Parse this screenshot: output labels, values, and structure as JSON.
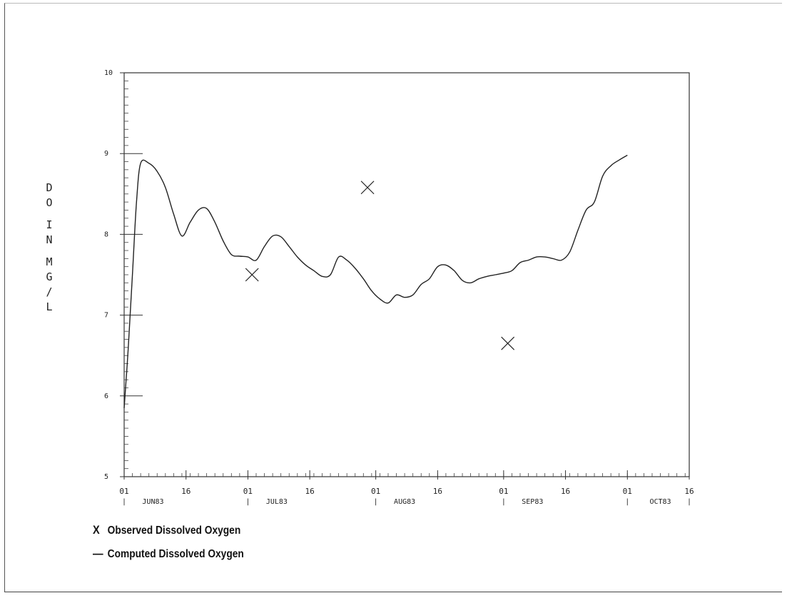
{
  "chart_data": {
    "type": "line",
    "ylabel": "DO IN MG/L",
    "ylim": [
      5,
      10
    ],
    "yticks": [
      "5",
      "6",
      "7",
      "8",
      "9",
      "10"
    ],
    "xlim": [
      "1983-06-01",
      "1983-10-16"
    ],
    "xticks": [
      {
        "date": "1983-06-01",
        "day": "01"
      },
      {
        "date": "1983-06-16",
        "day": "16"
      },
      {
        "date": "1983-07-01",
        "day": "01"
      },
      {
        "date": "1983-07-16",
        "day": "16"
      },
      {
        "date": "1983-08-01",
        "day": "01"
      },
      {
        "date": "1983-08-16",
        "day": "16"
      },
      {
        "date": "1983-09-01",
        "day": "01"
      },
      {
        "date": "1983-09-16",
        "day": "16"
      },
      {
        "date": "1983-10-01",
        "day": "01"
      },
      {
        "date": "1983-10-16",
        "day": "16"
      }
    ],
    "month_labels": [
      {
        "date": "1983-06-08",
        "label": "JUN83"
      },
      {
        "date": "1983-07-08",
        "label": "JUL83"
      },
      {
        "date": "1983-08-08",
        "label": "AUG83"
      },
      {
        "date": "1983-09-08",
        "label": "SEP83"
      },
      {
        "date": "1983-10-09",
        "label": "OCT83"
      }
    ],
    "series": [
      {
        "name": "Computed Dissolved Oxygen",
        "style": "line",
        "x": [
          "1983-06-01",
          "1983-06-02",
          "1983-06-03",
          "1983-06-04",
          "1983-06-05",
          "1983-06-07",
          "1983-06-09",
          "1983-06-11",
          "1983-06-13",
          "1983-06-15",
          "1983-06-17",
          "1983-06-19",
          "1983-06-21",
          "1983-06-23",
          "1983-06-25",
          "1983-06-27",
          "1983-06-29",
          "1983-07-01",
          "1983-07-03",
          "1983-07-05",
          "1983-07-07",
          "1983-07-09",
          "1983-07-11",
          "1983-07-13",
          "1983-07-15",
          "1983-07-17",
          "1983-07-19",
          "1983-07-21",
          "1983-07-23",
          "1983-07-25",
          "1983-07-27",
          "1983-07-29",
          "1983-07-31",
          "1983-08-02",
          "1983-08-04",
          "1983-08-06",
          "1983-08-08",
          "1983-08-10",
          "1983-08-12",
          "1983-08-14",
          "1983-08-16",
          "1983-08-18",
          "1983-08-20",
          "1983-08-22",
          "1983-08-24",
          "1983-08-26",
          "1983-08-28",
          "1983-08-30",
          "1983-09-01",
          "1983-09-03",
          "1983-09-05",
          "1983-09-07",
          "1983-09-09",
          "1983-09-11",
          "1983-09-13",
          "1983-09-15",
          "1983-09-17",
          "1983-09-19",
          "1983-09-21",
          "1983-09-23",
          "1983-09-25",
          "1983-09-27",
          "1983-09-29",
          "1983-10-01"
        ],
        "y": [
          5.85,
          6.6,
          7.5,
          8.4,
          8.88,
          8.88,
          8.78,
          8.58,
          8.25,
          7.98,
          8.15,
          8.3,
          8.32,
          8.15,
          7.92,
          7.75,
          7.73,
          7.72,
          7.68,
          7.85,
          7.98,
          7.97,
          7.85,
          7.72,
          7.62,
          7.55,
          7.48,
          7.5,
          7.72,
          7.68,
          7.58,
          7.45,
          7.3,
          7.2,
          7.15,
          7.25,
          7.22,
          7.25,
          7.38,
          7.45,
          7.6,
          7.62,
          7.55,
          7.43,
          7.4,
          7.45,
          7.48,
          7.5,
          7.52,
          7.55,
          7.65,
          7.68,
          7.72,
          7.72,
          7.7,
          7.68,
          7.78,
          8.05,
          8.3,
          8.4,
          8.72,
          8.85,
          8.92,
          8.98
        ]
      },
      {
        "name": "Observed Dissolved Oxygen",
        "style": "marker-x",
        "x": [
          "1983-07-02",
          "1983-07-30",
          "1983-09-02"
        ],
        "y": [
          7.5,
          8.58,
          6.65
        ]
      }
    ]
  },
  "legend": {
    "observed_symbol": "X",
    "observed_label": "Observed Dissolved Oxygen",
    "computed_symbol": "—",
    "computed_label": "Computed Dissolved Oxygen"
  },
  "colors": {
    "line": "#222222",
    "axis": "#333333",
    "text": "#222222"
  }
}
